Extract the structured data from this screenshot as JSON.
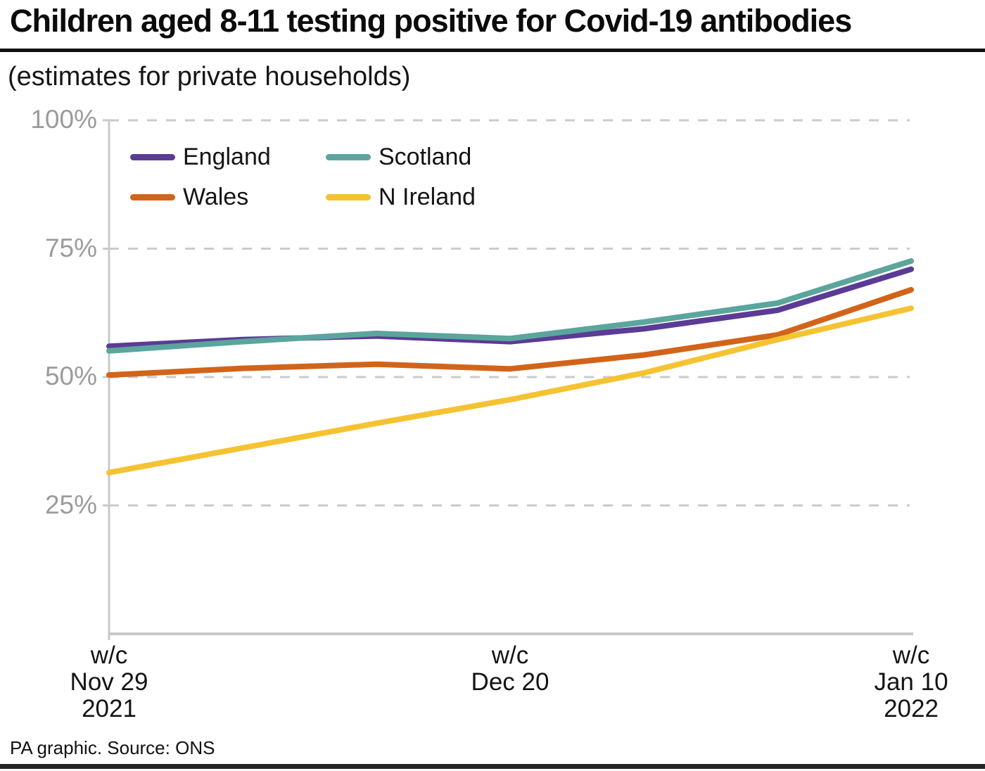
{
  "header": {
    "title": "Children aged 8-11 testing positive for Covid-19 antibodies",
    "subtitle": "(estimates for private households)"
  },
  "footer": {
    "source": "PA graphic. Source: ONS"
  },
  "colors": {
    "england": "#5b3b95",
    "wales": "#d2641a",
    "scotland": "#5ba59d",
    "n_ireland": "#f5c332",
    "gridline": "#cbcbcb",
    "axis": "#c9c9c9",
    "tick_label": "#9b9b9b",
    "rule": "#111111"
  },
  "chart_data": {
    "type": "line",
    "unit": "%",
    "x_points": 7,
    "x_note": "weekly points from w/c Nov 29 2021 to w/c Jan 10 2022",
    "xticks": [
      {
        "index": 0,
        "lines": [
          "w/c",
          "Nov 29",
          "2021"
        ]
      },
      {
        "index": 3,
        "lines": [
          "w/c",
          "Dec 20"
        ]
      },
      {
        "index": 6,
        "lines": [
          "w/c",
          "Jan 10",
          "2022"
        ]
      }
    ],
    "yticks": [
      {
        "value": 100,
        "label": "100%"
      },
      {
        "value": 75,
        "label": "75%"
      },
      {
        "value": 50,
        "label": "50%"
      },
      {
        "value": 25,
        "label": "25%"
      }
    ],
    "ylim": [
      0,
      100
    ],
    "grid": "horizontal dashed",
    "legend_position": "top-left inside plot",
    "series": [
      {
        "name": "England",
        "color": "#5b3b95",
        "values": [
          56.0,
          57.3,
          58.0,
          56.9,
          59.4,
          63.0,
          71.0
        ]
      },
      {
        "name": "Wales",
        "color": "#d2641a",
        "values": [
          50.4,
          51.7,
          52.5,
          51.6,
          54.3,
          58.2,
          67.0
        ]
      },
      {
        "name": "Scotland",
        "color": "#5ba59d",
        "values": [
          55.1,
          56.9,
          58.5,
          57.5,
          60.7,
          64.4,
          72.6
        ]
      },
      {
        "name": "N Ireland",
        "color": "#f5c332",
        "values": [
          31.4,
          36.2,
          41.0,
          45.6,
          50.8,
          57.3,
          63.4
        ]
      }
    ]
  }
}
